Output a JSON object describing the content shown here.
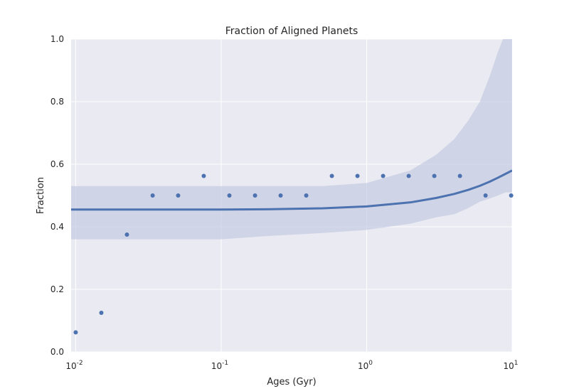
{
  "chart_data": {
    "type": "scatter",
    "title": "Fraction of Aligned Planets",
    "xlabel": "Ages (Gyr)",
    "ylabel": "Fraction",
    "xscale": "log",
    "xlim": [
      0.0093,
      10
    ],
    "ylim": [
      0,
      1
    ],
    "grid": true,
    "x_ticks": [
      {
        "value": 0.01,
        "base": "10",
        "exp": "-2"
      },
      {
        "value": 0.1,
        "base": "10",
        "exp": "-1"
      },
      {
        "value": 1,
        "base": "10",
        "exp": "0"
      },
      {
        "value": 10,
        "base": "10",
        "exp": "1"
      }
    ],
    "y_ticks": [
      "0.0",
      "0.2",
      "0.4",
      "0.6",
      "0.8",
      "1.0"
    ],
    "colors": {
      "points": "#4c72b0",
      "fit": "#4c72b0",
      "band": "#c4cbe3",
      "background": "#eaeaf2",
      "grid": "#ffffff"
    },
    "points": {
      "x": [
        0.01,
        0.015,
        0.0225,
        0.0338,
        0.0506,
        0.0759,
        0.1139,
        0.1709,
        0.2563,
        0.3844,
        0.5767,
        0.865,
        1.2975,
        1.9462,
        2.9193,
        4.379,
        6.5685,
        9.8527
      ],
      "y": [
        0.0625,
        0.125,
        0.375,
        0.5,
        0.5,
        0.5625,
        0.5,
        0.5,
        0.5,
        0.5,
        0.5625,
        0.5625,
        0.5625,
        0.5625,
        0.5625,
        0.5625,
        0.5,
        0.5
      ]
    },
    "fit_line": {
      "x": [
        0.0093,
        0.02,
        0.05,
        0.1,
        0.2,
        0.5,
        1.0,
        2.0,
        3.0,
        4.0,
        5.0,
        6.0,
        7.0,
        8.0,
        9.0,
        10.0
      ],
      "y": [
        0.455,
        0.455,
        0.455,
        0.455,
        0.456,
        0.459,
        0.465,
        0.478,
        0.492,
        0.505,
        0.518,
        0.531,
        0.544,
        0.557,
        0.569,
        0.58
      ]
    },
    "confidence_band": {
      "x": [
        0.0093,
        0.02,
        0.05,
        0.1,
        0.2,
        0.5,
        1.0,
        2.0,
        3.0,
        4.0,
        5.0,
        6.0,
        7.0,
        8.0,
        9.0,
        10.0
      ],
      "lower": [
        0.36,
        0.36,
        0.36,
        0.36,
        0.37,
        0.38,
        0.39,
        0.41,
        0.43,
        0.44,
        0.46,
        0.48,
        0.49,
        0.5,
        0.51,
        0.51
      ],
      "upper": [
        0.53,
        0.53,
        0.53,
        0.53,
        0.53,
        0.53,
        0.54,
        0.58,
        0.63,
        0.68,
        0.74,
        0.8,
        0.88,
        0.96,
        1.02,
        1.1
      ]
    }
  }
}
